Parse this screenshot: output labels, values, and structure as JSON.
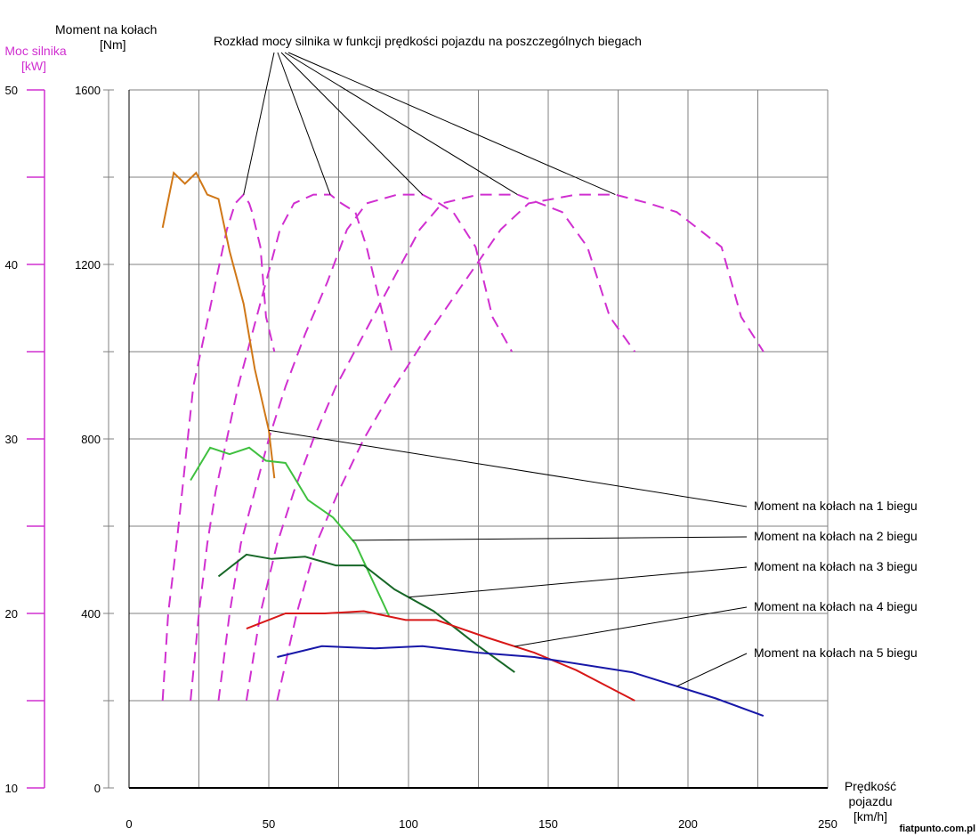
{
  "chart_data": {
    "type": "line",
    "title": "Rozkład mocy silnika w funkcji prędkości pojazdu na poszczególnych biegach",
    "xlabel": [
      "Prędkość",
      "pojazdu",
      "[km/h]"
    ],
    "ylabel_left": [
      "Moment na kołach",
      "[Nm]"
    ],
    "ylabel_power": [
      "Moc silnika",
      "[kW]"
    ],
    "xlim": [
      0,
      250
    ],
    "ylim_torque": [
      0,
      1600
    ],
    "ylim_power": [
      10,
      50
    ],
    "x_ticks": [
      "0",
      "50",
      "100",
      "150",
      "200",
      "250"
    ],
    "torque_ticks": [
      "0",
      "400",
      "800",
      "1200",
      "1600"
    ],
    "power_ticks": [
      "10",
      "20",
      "30",
      "40",
      "50"
    ],
    "grid": true,
    "watermark": "fiatpunto.com.pl",
    "colors": {
      "torque_gear_1": "#d07818",
      "torque_gear_2": "#40c040",
      "torque_gear_3": "#186828",
      "torque_gear_4": "#d81818",
      "torque_gear_5": "#1818a8",
      "power": "#d030d0",
      "axis": "#000000",
      "grid": "#808080"
    },
    "torque_series": [
      {
        "name": "Moment na kołach na 1 biegu",
        "x": [
          12,
          16,
          20,
          24,
          28,
          32,
          36,
          41,
          45,
          50,
          52
        ],
        "y": [
          1284,
          1410,
          1385,
          1410,
          1360,
          1350,
          1230,
          1110,
          960,
          820,
          710
        ]
      },
      {
        "name": "Moment na kołach na 2 biegu",
        "x": [
          22,
          29,
          36,
          43,
          49,
          56,
          64,
          73,
          81,
          93
        ],
        "y": [
          705,
          780,
          765,
          780,
          750,
          745,
          660,
          620,
          560,
          395
        ]
      },
      {
        "name": "Moment na kołach na 3 biegu",
        "x": [
          32,
          42,
          51,
          63,
          74,
          84,
          95,
          109,
          124,
          138
        ],
        "y": [
          485,
          535,
          525,
          530,
          510,
          510,
          455,
          405,
          330,
          265
        ]
      },
      {
        "name": "Moment na kołach na 4 biegu",
        "x": [
          42,
          56,
          70,
          84,
          99,
          110,
          128,
          145,
          160,
          181
        ],
        "y": [
          365,
          400,
          400,
          405,
          385,
          385,
          345,
          310,
          270,
          200
        ]
      },
      {
        "name": "Moment na kołach na 5 biegu",
        "x": [
          53,
          69,
          88,
          105,
          125,
          145,
          180,
          210,
          227
        ],
        "y": [
          300,
          325,
          320,
          325,
          310,
          300,
          265,
          205,
          165
        ]
      }
    ],
    "power_series": [
      {
        "x": [
          12,
          14,
          17,
          19,
          21,
          23,
          27,
          31,
          35,
          38,
          41,
          43,
          44,
          47,
          49,
          52
        ],
        "y": [
          15,
          20,
          24,
          27,
          30,
          33,
          36,
          39,
          42,
          43.5,
          44,
          43.5,
          43,
          41,
          37,
          35
        ]
      },
      {
        "x": [
          22,
          25,
          28,
          31,
          35,
          39,
          44,
          49,
          54,
          59,
          66,
          72,
          76,
          81,
          85,
          91,
          94
        ],
        "y": [
          15,
          20,
          24,
          27,
          30,
          33,
          36,
          39,
          42,
          43.5,
          44,
          44,
          43.5,
          43,
          41,
          37,
          35
        ]
      },
      {
        "x": [
          32,
          36,
          40,
          45,
          50,
          56,
          63,
          71,
          78,
          85,
          96,
          105,
          111,
          116,
          124,
          130,
          137
        ],
        "y": [
          15,
          20,
          24,
          27,
          30,
          33,
          36,
          39,
          42,
          43.5,
          44,
          44,
          43.5,
          43,
          41,
          37,
          35
        ]
      },
      {
        "x": [
          42,
          47,
          53,
          59,
          66,
          74,
          84,
          94,
          104,
          112,
          125,
          139,
          147,
          155,
          164,
          172,
          181
        ],
        "y": [
          15,
          20,
          24,
          27,
          30,
          33,
          36,
          39,
          42,
          43.5,
          44,
          44,
          43.5,
          43,
          41,
          37,
          35
        ]
      },
      {
        "x": [
          53,
          60,
          67,
          75,
          84,
          95,
          107,
          120,
          133,
          143,
          160,
          174,
          186,
          196,
          212,
          219,
          227
        ],
        "y": [
          15,
          20,
          24,
          27,
          30,
          33,
          36,
          39,
          42,
          43.5,
          44,
          44,
          43.5,
          43,
          41,
          37,
          35
        ]
      }
    ],
    "power_peak_labels": [
      "41,44",
      "72,44",
      "105,44",
      "139,44",
      "174,44"
    ]
  }
}
